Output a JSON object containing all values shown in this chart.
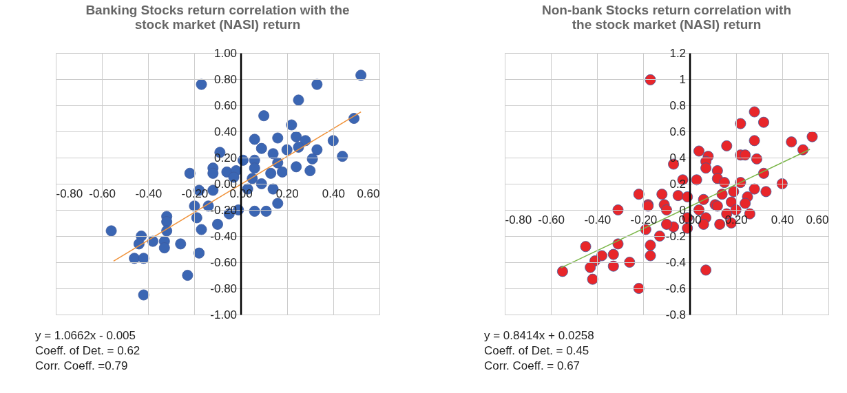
{
  "chart_data": [
    {
      "type": "scatter",
      "title": "Banking Stocks return correlation with the\nstock market (NASI) return",
      "grid": true,
      "xlim": [
        -0.8,
        0.6
      ],
      "ylim": [
        -1.0,
        1.0
      ],
      "xticks": [
        {
          "value": -0.8,
          "label": "-0.80"
        },
        {
          "value": -0.6,
          "label": "-0.60"
        },
        {
          "value": -0.4,
          "label": "-0.40"
        },
        {
          "value": -0.2,
          "label": "-0.20"
        },
        {
          "value": 0,
          "label": "0.00"
        },
        {
          "value": 0.2,
          "label": "0.20"
        },
        {
          "value": 0.4,
          "label": "0.40"
        },
        {
          "value": 0.6,
          "label": "0.60"
        }
      ],
      "yticks": [
        {
          "value": -1.0,
          "label": "-1.00"
        },
        {
          "value": -0.8,
          "label": "-0.80"
        },
        {
          "value": -0.6,
          "label": "-0.60"
        },
        {
          "value": -0.4,
          "label": "-0.40"
        },
        {
          "value": -0.2,
          "label": "-0.20"
        },
        {
          "value": 0,
          "label": "0.00"
        },
        {
          "value": 0.2,
          "label": "0.20"
        },
        {
          "value": 0.4,
          "label": "0.40"
        },
        {
          "value": 0.6,
          "label": "0.60"
        },
        {
          "value": 0.8,
          "label": "0.80"
        },
        {
          "value": 1.0,
          "label": "1.00"
        }
      ],
      "annotations": [
        "y = 1.0662x - 0.005",
        "Coeff.  of Det. = 0.62",
        "Corr. Coeff. =0.79"
      ],
      "series": [
        {
          "type": "scatter",
          "marker": "circle",
          "color": "#3b66b3",
          "x": [
            -0.17,
            0.52,
            0.33,
            0.25,
            0.1,
            0.49,
            0.22,
            0.06,
            0.16,
            0.24,
            0.28,
            0.4,
            0.44,
            0.33,
            0.09,
            0.14,
            0.2,
            0.25,
            0.31,
            0.24,
            0.3,
            0.18,
            0.13,
            0.16,
            -0.09,
            -0.22,
            -0.12,
            -0.12,
            -0.06,
            -0.02,
            0.01,
            0.06,
            0.06,
            -0.03,
            0.05,
            0.09,
            0.14,
            -0.18,
            -0.12,
            0.03,
            -0.2,
            -0.14,
            -0.05,
            -0.01,
            0.06,
            0.11,
            0.16,
            -0.19,
            -0.17,
            -0.1,
            -0.32,
            -0.32,
            -0.32,
            -0.56,
            -0.43,
            -0.38,
            -0.44,
            -0.33,
            -0.33,
            -0.26,
            -0.18,
            -0.46,
            -0.42,
            -0.23,
            -0.42
          ],
          "values": [
            0.76,
            0.83,
            0.76,
            0.64,
            0.52,
            0.5,
            0.45,
            0.34,
            0.35,
            0.36,
            0.33,
            0.33,
            0.21,
            0.26,
            0.27,
            0.23,
            0.26,
            0.28,
            0.19,
            0.13,
            0.1,
            0.09,
            0.08,
            0.16,
            0.24,
            0.08,
            0.12,
            0.08,
            0.09,
            0.1,
            0.18,
            0.18,
            0.12,
            0.05,
            0.04,
            0.0,
            -0.04,
            -0.05,
            -0.05,
            -0.04,
            -0.17,
            -0.17,
            -0.23,
            -0.2,
            -0.21,
            -0.21,
            -0.15,
            -0.26,
            -0.35,
            -0.31,
            -0.25,
            -0.29,
            -0.36,
            -0.36,
            -0.4,
            -0.44,
            -0.46,
            -0.44,
            -0.49,
            -0.46,
            -0.53,
            -0.57,
            -0.57,
            -0.7,
            -0.85
          ]
        },
        {
          "type": "line",
          "marker": "none",
          "color": "#f0923a",
          "x": [
            -0.55,
            0.52
          ],
          "values": [
            -0.591,
            0.549
          ]
        }
      ]
    },
    {
      "type": "scatter",
      "title": "Non-bank Stocks return correlation with\nthe stock market (NASI) return",
      "grid": true,
      "xlim": [
        -0.8,
        0.6
      ],
      "ylim": [
        -0.8,
        1.2
      ],
      "xticks": [
        {
          "value": -0.8,
          "label": "-0.80"
        },
        {
          "value": -0.6,
          "label": "-0.60"
        },
        {
          "value": -0.4,
          "label": "-0.40"
        },
        {
          "value": -0.2,
          "label": "-0.20"
        },
        {
          "value": 0,
          "label": "0.00"
        },
        {
          "value": 0.2,
          "label": "0.20"
        },
        {
          "value": 0.4,
          "label": "0.40"
        },
        {
          "value": 0.6,
          "label": "0.60"
        }
      ],
      "yticks": [
        -0.8,
        -0.6,
        -0.4,
        -0.2,
        0,
        0.2,
        0.4,
        0.6,
        0.8,
        1,
        1.2
      ],
      "annotations": [
        "y = 0.8414x + 0.0258",
        "Coeff. of Det.  = 0.45",
        "Corr. Coeff. = 0.67"
      ],
      "series": [
        {
          "type": "scatter",
          "marker": "circle",
          "color": "#e8262a",
          "x": [
            -0.17,
            0.28,
            0.22,
            0.32,
            0.53,
            0.44,
            0.28,
            0.16,
            0.49,
            0.04,
            0.08,
            0.22,
            0.24,
            0.29,
            0.07,
            -0.07,
            0.07,
            0.12,
            0.32,
            0.12,
            0.15,
            -0.03,
            0.03,
            0.22,
            0.4,
            0.19,
            0.28,
            0.33,
            -0.22,
            -0.12,
            -0.05,
            -0.01,
            0.06,
            0.14,
            0.25,
            -0.18,
            -0.11,
            0.11,
            0.18,
            0.24,
            -0.31,
            -0.18,
            -0.1,
            0.04,
            0.12,
            0.2,
            0.26,
            0.16,
            0.07,
            -0.01,
            -0.07,
            -0.01,
            0.06,
            0.13,
            0.18,
            -0.1,
            -0.19,
            -0.13,
            -0.31,
            -0.45,
            -0.17,
            -0.17,
            -0.33,
            -0.38,
            -0.41,
            -0.26,
            -0.33,
            -0.43,
            -0.55,
            -0.42,
            0.07,
            -0.22
          ],
          "values": [
            0.995,
            0.75,
            0.66,
            0.67,
            0.56,
            0.52,
            0.53,
            0.49,
            0.46,
            0.45,
            0.41,
            0.42,
            0.42,
            0.39,
            0.37,
            0.35,
            0.32,
            0.3,
            0.28,
            0.24,
            0.21,
            0.23,
            0.23,
            0.21,
            0.2,
            0.14,
            0.16,
            0.14,
            0.12,
            0.12,
            0.11,
            0.1,
            0.08,
            0.12,
            0.1,
            0.04,
            0.04,
            0.04,
            0.06,
            0.05,
            0.0,
            0.03,
            0.0,
            0.0,
            0.03,
            0.0,
            -0.03,
            -0.03,
            -0.06,
            -0.06,
            -0.13,
            -0.14,
            -0.11,
            -0.11,
            -0.1,
            -0.11,
            -0.15,
            -0.2,
            -0.26,
            -0.28,
            -0.27,
            -0.35,
            -0.34,
            -0.35,
            -0.39,
            -0.4,
            -0.43,
            -0.44,
            -0.47,
            -0.53,
            -0.46,
            -0.6
          ]
        },
        {
          "type": "line",
          "marker": "none",
          "color": "#7ab648",
          "x": [
            -0.557,
            0.52
          ],
          "values": [
            -0.443,
            0.463
          ]
        }
      ]
    }
  ]
}
